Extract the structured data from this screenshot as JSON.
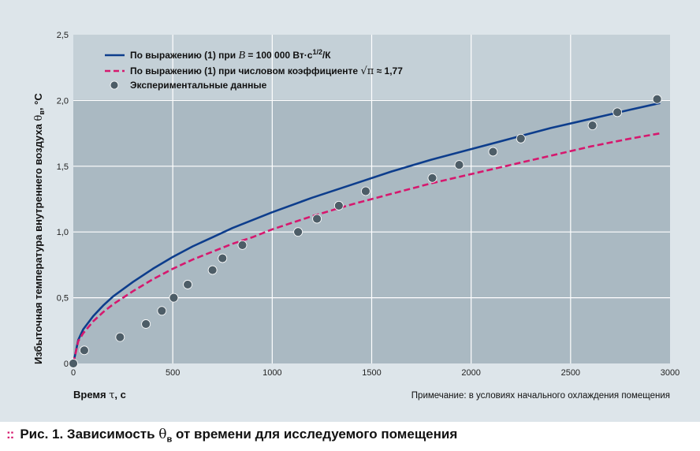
{
  "chart_data": {
    "type": "line",
    "ylabel": "Избыточная температура внутреннего воздуха θв, °C",
    "xlabel": "Время τ, с",
    "xlim": [
      0,
      3000
    ],
    "ylim": [
      0,
      2.5
    ],
    "x_ticks": [
      "0",
      "500",
      "1000",
      "1500",
      "2000",
      "2500",
      "3000"
    ],
    "y_ticks": [
      "0",
      "0,5",
      "1,0",
      "1,5",
      "2,0",
      "2,5"
    ],
    "grid": true,
    "legend_position": "top-left",
    "series": [
      {
        "name": "По выражению (1) при B = 100 000 Вт·с1/2/К",
        "style": "solid",
        "color": "#0d3d8c",
        "x": [
          0,
          25,
          50,
          100,
          150,
          200,
          300,
          400,
          500,
          600,
          700,
          800,
          900,
          1000,
          1200,
          1400,
          1600,
          1800,
          2000,
          2200,
          2400,
          2600,
          2800,
          2950
        ],
        "values": [
          0,
          0.18,
          0.26,
          0.36,
          0.44,
          0.51,
          0.62,
          0.72,
          0.81,
          0.89,
          0.96,
          1.03,
          1.09,
          1.15,
          1.26,
          1.36,
          1.46,
          1.55,
          1.63,
          1.71,
          1.79,
          1.86,
          1.93,
          1.98
        ]
      },
      {
        "name": "По выражению (1) при числовом коэффициенте √π ≈ 1,77",
        "style": "dashed",
        "color": "#d6186e",
        "x": [
          0,
          25,
          50,
          100,
          150,
          200,
          300,
          400,
          500,
          600,
          700,
          800,
          900,
          1000,
          1200,
          1400,
          1600,
          1800,
          2000,
          2200,
          2400,
          2600,
          2800,
          2950
        ],
        "values": [
          0,
          0.17,
          0.23,
          0.32,
          0.39,
          0.45,
          0.55,
          0.64,
          0.72,
          0.79,
          0.85,
          0.91,
          0.96,
          1.02,
          1.12,
          1.21,
          1.29,
          1.37,
          1.44,
          1.51,
          1.58,
          1.65,
          1.71,
          1.75
        ]
      },
      {
        "name": "Экспериментальные данные",
        "style": "points",
        "color": "#4d5d67",
        "x": [
          0,
          55,
          235,
          365,
          445,
          505,
          575,
          700,
          750,
          850,
          1130,
          1225,
          1335,
          1470,
          1805,
          1940,
          2110,
          2250,
          2610,
          2735,
          2935
        ],
        "values": [
          0,
          0.1,
          0.2,
          0.3,
          0.4,
          0.5,
          0.6,
          0.71,
          0.8,
          0.9,
          1.0,
          1.1,
          1.2,
          1.31,
          1.41,
          1.51,
          1.61,
          1.71,
          1.81,
          1.91,
          2.01
        ]
      }
    ],
    "note": "Примечание: в условиях начального охлаждения помещения"
  },
  "legend": {
    "line1_text": "По выражению (1) при ",
    "line1_var": "B",
    "line1_eq": " = 100 000 Вт·с",
    "line1_sup": "1/2",
    "line1_tail": "/К",
    "line2_text": "По выражению (1) при числовом коэффициенте ",
    "line2_sqrt": "√π",
    "line2_tail": " ≈ 1,77",
    "line3_text": "Экспериментальные данные"
  },
  "ylabel_parts": {
    "main": "Избыточная температура внутреннего воздуха ",
    "theta": "θ",
    "sub": "в",
    "unit": ", °C"
  },
  "xlabel_parts": {
    "main": "Время ",
    "tau": "τ",
    "unit": ", с"
  },
  "caption": {
    "dots": "::",
    "text": "Рис. 1. Зависимость ",
    "theta": "θ",
    "sub": "в",
    "tail": " от времени для исследуемого помещения"
  },
  "colors": {
    "panel_bg": "#dde5ea",
    "plot_bg": "#aab9c2",
    "legend_bg": "#c4d0d7",
    "grid": "#ffffff",
    "blue": "#0d3d8c",
    "pink": "#d6186e",
    "points": "#4d5d67"
  }
}
